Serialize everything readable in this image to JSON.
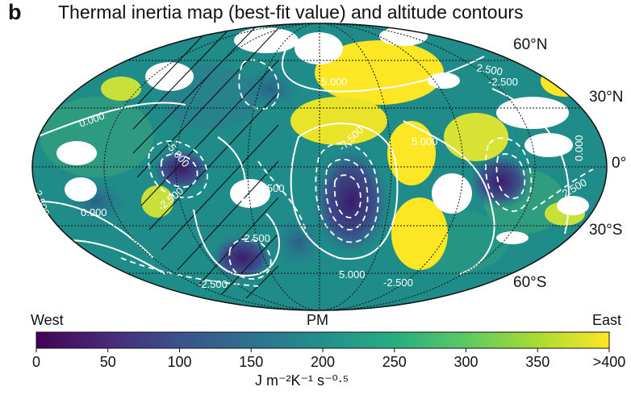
{
  "panel_letter": "b",
  "title": "Thermal inertia map (best-fit value) and altitude contours",
  "lat_labels": {
    "n60": "60°N",
    "n30": "30°N",
    "eq": "0°",
    "s30": "30°S",
    "s60": "60°S"
  },
  "lon_labels": {
    "west": "West",
    "pm": "PM",
    "east": "East"
  },
  "contour_labels": [
    "0.000",
    "2.500",
    "-5.000",
    "-2.500",
    "2.500",
    "-7.500",
    "5.000",
    "0.000",
    "2.500",
    "-2.500",
    "-2.500",
    "5.000",
    "2.500",
    "0.000",
    "5.000",
    "-2.500",
    "-2.500"
  ],
  "colorbar": {
    "ticks": [
      {
        "value": 0,
        "label": "0"
      },
      {
        "value": 50,
        "label": "50"
      },
      {
        "value": 100,
        "label": "100"
      },
      {
        "value": 150,
        "label": "150"
      },
      {
        "value": 200,
        "label": "200"
      },
      {
        "value": 250,
        "label": "250"
      },
      {
        "value": 300,
        "label": "300"
      },
      {
        "value": 350,
        "label": "350"
      },
      {
        "value": 400,
        "label": ">400"
      }
    ],
    "min": 0,
    "max": 400,
    "unit_label": "J m⁻²K⁻¹ s⁻⁰·⁵",
    "colors": [
      "#440154",
      "#3b528b",
      "#21918c",
      "#5ec962",
      "#fde725"
    ]
  }
}
